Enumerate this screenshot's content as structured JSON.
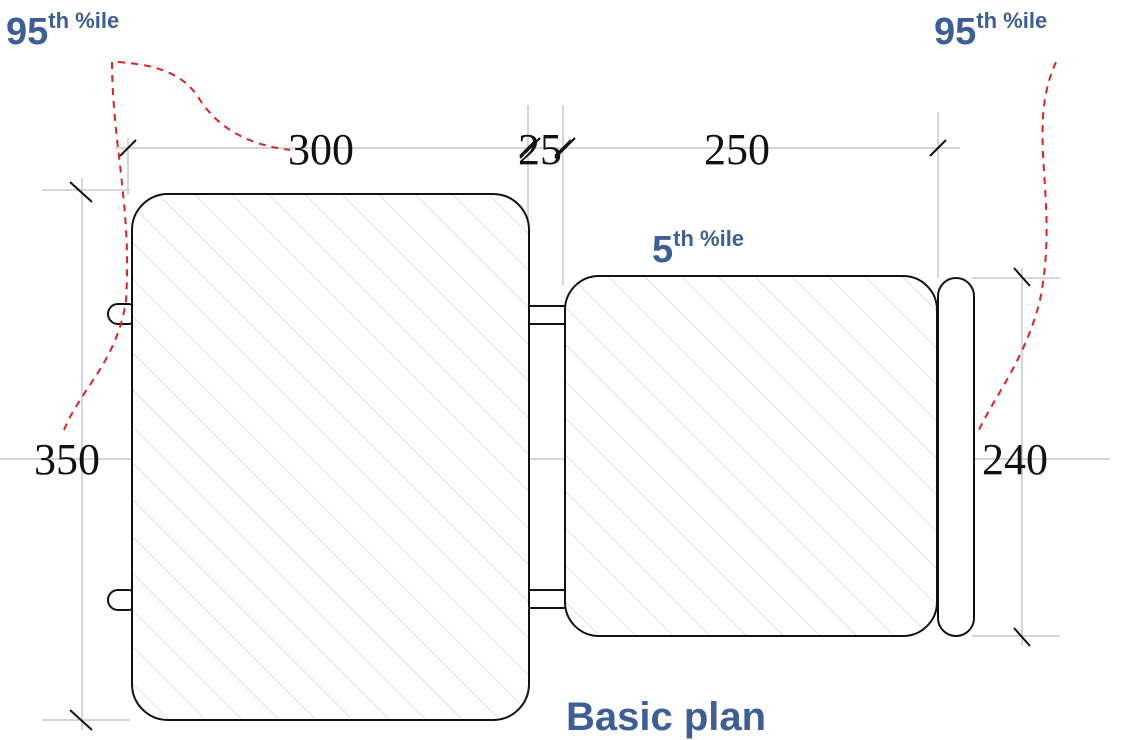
{
  "labels": {
    "left_percentile": "95",
    "left_percentile_suffix": "th %ile",
    "right_percentile": "95",
    "right_percentile_suffix": "th %ile",
    "middle_percentile": "5",
    "middle_percentile_suffix": "th %ile",
    "caption": "Basic plan"
  },
  "dimensions": {
    "wheelchair_width": "300",
    "gap": "25",
    "footrest_length": "250",
    "wheelchair_length": "350",
    "footrest_width": "240"
  },
  "colors": {
    "label": "#3d5f95",
    "leader": "#e02020",
    "line": "#111111",
    "hatch": "#cfcfcf"
  }
}
